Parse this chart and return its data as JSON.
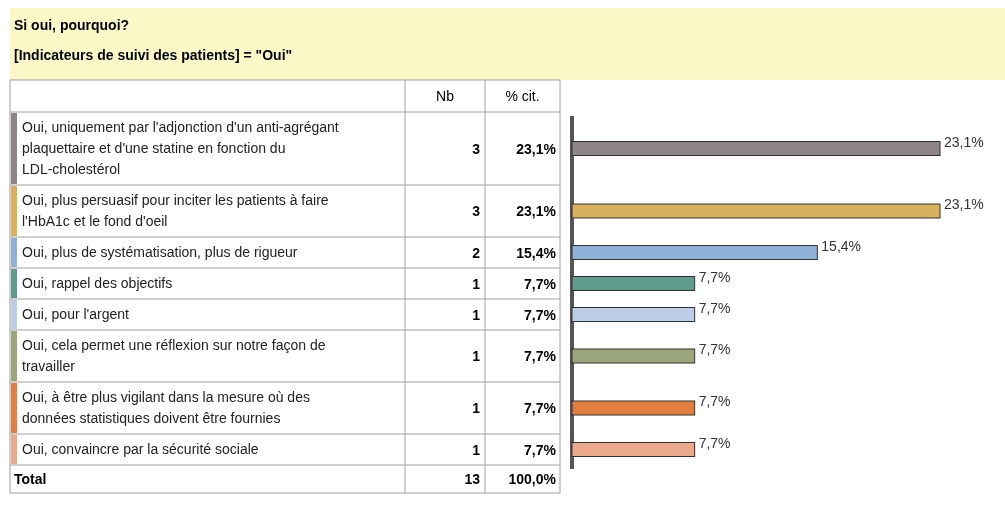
{
  "chart_data": {
    "type": "bar",
    "orientation": "horizontal",
    "title": "Si oui, pourquoi?",
    "subtitle": "[Indicateurs de suivi des patients] = \"Oui\"",
    "categories": [
      "Oui, uniquement par l'adjonction d'un anti-agrégant plaquettaire et d'une statine en fonction du LDL-cholestérol",
      "Oui, plus persuasif pour inciter les patients à faire l'HbA1c et le fond d'oeil",
      "Oui, plus de systématisation, plus de rigueur",
      "Oui, rappel des objectifs",
      "Oui, pour l'argent",
      "Oui, cela permet une réflexion sur notre façon de travailler",
      "Oui, à être plus vigilant dans la mesure où des données statistiques doivent être fournies",
      "Oui, convaincre par la sécurité sociale"
    ],
    "values": [
      23.1,
      23.1,
      15.4,
      7.7,
      7.7,
      7.7,
      7.7,
      7.7
    ],
    "colors": [
      "#8e8586",
      "#d9b15c",
      "#8fb1d8",
      "#5f9a8c",
      "#bccde6",
      "#9aa57a",
      "#e07f40",
      "#eba88a"
    ],
    "value_labels": [
      "23,1%",
      "23,1%",
      "15,4%",
      "7,7%",
      "7,7%",
      "7,7%",
      "7,7%",
      "7,7%"
    ],
    "annotations": [
      "Nb",
      "% cit.",
      "3",
      "3",
      "2",
      "1",
      "1",
      "1",
      "1",
      "1",
      "Total",
      "13",
      "100,0%"
    ]
  }
}
